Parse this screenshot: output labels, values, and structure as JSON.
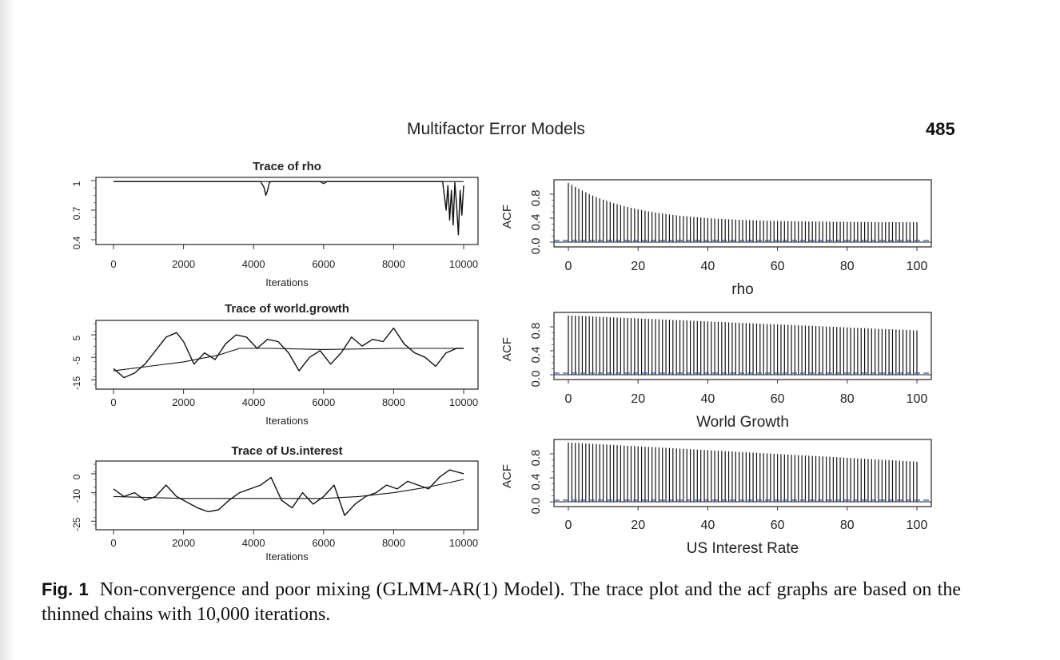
{
  "header": {
    "running_head": "Multifactor Error Models",
    "page_number": "485"
  },
  "caption": {
    "label": "Fig. 1",
    "text": "Non-convergence and poor mixing (GLMM-AR(1) Model). The trace plot and the acf graphs are based on the thinned chains with 10,000 iterations."
  },
  "chart_data": [
    {
      "type": "line",
      "title": "Trace of rho",
      "xlabel": "Iterations",
      "ylabel": "",
      "xlim": [
        0,
        10000
      ],
      "ylim": [
        0.4,
        1.0
      ],
      "xticks": [
        0,
        2000,
        4000,
        6000,
        8000,
        10000
      ],
      "yticks": [
        0.4,
        0.7,
        1.0
      ],
      "series": [
        {
          "values_x": [
            0,
            1000,
            2000,
            3000,
            4200,
            4300,
            4350,
            4400,
            4450,
            4500,
            5000,
            5900,
            6000,
            6100,
            7000,
            8000,
            9000,
            9400,
            9500,
            9550,
            9600,
            9650,
            9700,
            9750,
            9800,
            9850,
            9900,
            9950,
            10000
          ],
          "values_y": [
            0.99,
            0.99,
            0.99,
            0.99,
            0.99,
            0.93,
            0.85,
            0.9,
            0.98,
            0.99,
            0.99,
            0.99,
            0.97,
            0.99,
            0.99,
            0.99,
            0.99,
            0.99,
            0.7,
            0.95,
            0.6,
            0.9,
            0.55,
            0.98,
            0.75,
            0.45,
            0.9,
            0.65,
            0.95
          ]
        },
        {
          "name_hidden": true,
          "smooth": true,
          "values_x": [
            0,
            10000
          ],
          "values_y": [
            0.99,
            0.99
          ]
        }
      ]
    },
    {
      "type": "line",
      "title": "Trace of world.growth",
      "xlabel": "Iterations",
      "ylabel": "",
      "xlim": [
        0,
        10000
      ],
      "ylim": [
        -17,
        10
      ],
      "xticks": [
        0,
        2000,
        4000,
        6000,
        8000,
        10000
      ],
      "yticks": [
        -15,
        -5,
        5
      ],
      "series": [
        {
          "values_x": [
            0,
            300,
            600,
            900,
            1200,
            1500,
            1800,
            2000,
            2300,
            2600,
            2900,
            3200,
            3500,
            3800,
            4100,
            4400,
            4700,
            5000,
            5300,
            5600,
            5900,
            6200,
            6500,
            6800,
            7100,
            7400,
            7700,
            8000,
            8300,
            8600,
            8900,
            9200,
            9500,
            9800,
            10000
          ],
          "values_y": [
            -10,
            -14,
            -12,
            -8,
            -2,
            4,
            6,
            2,
            -8,
            -3,
            -6,
            1,
            5,
            4,
            -1,
            3,
            2,
            -3,
            -11,
            -5,
            -2,
            -8,
            -3,
            4,
            0,
            3,
            2,
            8,
            1,
            -3,
            -5,
            -9,
            -3,
            -1,
            -1
          ]
        },
        {
          "smooth": true,
          "values_x": [
            0,
            1000,
            2000,
            3000,
            3600,
            4500,
            6000,
            8000,
            10000
          ],
          "values_y": [
            -11,
            -9,
            -7,
            -4,
            -1,
            -1,
            -1.5,
            -1,
            -1
          ]
        }
      ]
    },
    {
      "type": "line",
      "title": "Trace of Us.interest",
      "xlabel": "Iterations",
      "ylabel": "",
      "xlim": [
        0,
        10000
      ],
      "ylim": [
        -27,
        5
      ],
      "xticks": [
        0,
        2000,
        4000,
        6000,
        8000,
        10000
      ],
      "yticks": [
        -25,
        -10,
        0
      ],
      "series": [
        {
          "values_x": [
            0,
            300,
            600,
            900,
            1200,
            1500,
            1800,
            2100,
            2400,
            2700,
            3000,
            3300,
            3600,
            3900,
            4200,
            4500,
            4800,
            5100,
            5400,
            5700,
            6000,
            6300,
            6600,
            6900,
            7200,
            7500,
            7800,
            8100,
            8400,
            8700,
            9000,
            9300,
            9600,
            9800,
            10000
          ],
          "values_y": [
            -8,
            -12,
            -10,
            -14,
            -12,
            -6,
            -12,
            -15,
            -18,
            -20,
            -19,
            -14,
            -10,
            -8,
            -6,
            -2,
            -14,
            -18,
            -10,
            -16,
            -12,
            -6,
            -22,
            -16,
            -12,
            -10,
            -6,
            -8,
            -4,
            -6,
            -8,
            -2,
            2,
            1,
            0
          ]
        },
        {
          "smooth": true,
          "values_x": [
            0,
            2000,
            4000,
            6000,
            7000,
            8000,
            9000,
            10000
          ],
          "values_y": [
            -12,
            -13,
            -13,
            -13,
            -12,
            -10,
            -7,
            -3
          ]
        }
      ]
    },
    {
      "type": "bar",
      "title": "",
      "xlabel": "rho",
      "ylabel": "ACF",
      "xlim": [
        0,
        100
      ],
      "ylim": [
        0,
        1
      ],
      "xticks": [
        0,
        20,
        40,
        60,
        80,
        100
      ],
      "yticks": [
        0.0,
        0.4,
        0.8
      ],
      "acf_lags": 100,
      "acf_start": 0.99,
      "acf_end": 0.33,
      "acf_decay": "exponential"
    },
    {
      "type": "bar",
      "title": "",
      "xlabel": "World Growth",
      "ylabel": "ACF",
      "xlim": [
        0,
        100
      ],
      "ylim": [
        0,
        1
      ],
      "xticks": [
        0,
        20,
        40,
        60,
        80,
        100
      ],
      "yticks": [
        0.0,
        0.4,
        0.8
      ],
      "acf_lags": 100,
      "acf_start": 0.99,
      "acf_end": 0.74,
      "acf_decay": "linear"
    },
    {
      "type": "bar",
      "title": "",
      "xlabel": "US Interest Rate",
      "ylabel": "ACF",
      "xlim": [
        0,
        100
      ],
      "ylim": [
        0,
        1
      ],
      "xticks": [
        0,
        20,
        40,
        60,
        80,
        100
      ],
      "yticks": [
        0.0,
        0.4,
        0.8
      ],
      "acf_lags": 100,
      "acf_start": 0.99,
      "acf_end": 0.67,
      "acf_decay": "linear"
    }
  ]
}
